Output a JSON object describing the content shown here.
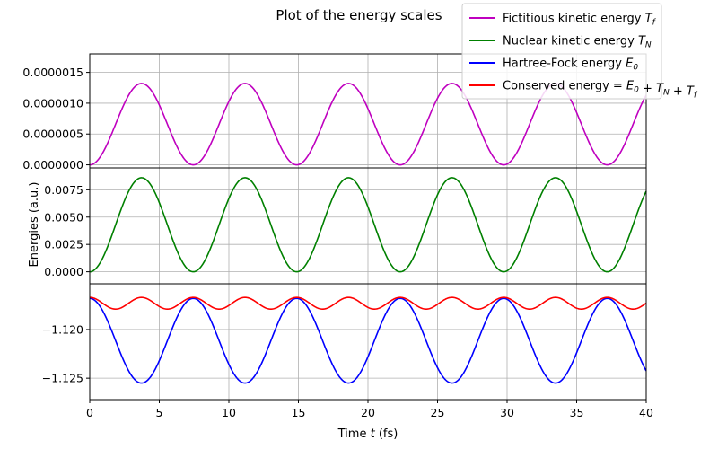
{
  "chart_data": {
    "type": "line",
    "title": "Plot of the energy scales",
    "xlabel": "Time t (fs)",
    "ylabel": "Energies (a.u.)",
    "xlim": [
      0,
      40
    ],
    "x_ticks": [
      0,
      5,
      10,
      15,
      20,
      25,
      30,
      35,
      40
    ],
    "x_tick_labels": [
      "0",
      "5",
      "10",
      "15",
      "20",
      "25",
      "30",
      "35",
      "40"
    ],
    "grid": true,
    "legend_position": "top-right",
    "panels": [
      {
        "ylim": [
          -5e-08,
          1.8e-06
        ],
        "y_ticks": [
          0,
          5e-07,
          1e-06,
          1.5e-06
        ],
        "y_tick_labels": [
          "0.0000000",
          "0.0000005",
          "0.0000010",
          "0.0000015"
        ],
        "series": [
          {
            "name": "Fictitious kinetic energy T_f",
            "color": "#bf00bf",
            "model": {
              "kind": "sq_sin",
              "amp": 1.32e-06,
              "period": 7.44,
              "phase": 0,
              "offset": 0.0
            }
          }
        ]
      },
      {
        "ylim": [
          -0.0011,
          0.0095
        ],
        "y_ticks": [
          0,
          0.0025,
          0.005,
          0.0075
        ],
        "y_tick_labels": [
          "0.0000",
          "0.0025",
          "0.0050",
          "0.0075"
        ],
        "series": [
          {
            "name": "Nuclear kinetic energy T_N",
            "color": "#008000",
            "model": {
              "kind": "sq_sin",
              "amp": 0.0086,
              "period": 7.44,
              "phase": 0,
              "offset": 0
            }
          }
        ]
      },
      {
        "ylim": [
          -1.1272,
          -1.1153
        ],
        "y_ticks": [
          -1.125,
          -1.12
        ],
        "y_tick_labels": [
          "−1.125",
          "−1.120"
        ],
        "series": [
          {
            "name": "Hartree-Fock energy E_0",
            "color": "#0000ff",
            "model": {
              "kind": "sq_sin",
              "amp": -0.0087,
              "period": 7.44,
              "phase": 0,
              "offset": -1.1168
            }
          },
          {
            "name": "Conserved energy = E_0 + T_N + T_f",
            "color": "#ff0000",
            "model": {
              "kind": "cos_wiggle",
              "amp": 0.0006,
              "period": 3.72,
              "offset": -1.1173
            }
          }
        ]
      }
    ],
    "legend": [
      {
        "label": "Fictitious kinetic energy",
        "math": "T",
        "sub": "f",
        "color": "#bf00bf"
      },
      {
        "label": "Nuclear kinetic energy",
        "math": "T",
        "sub": "N",
        "color": "#008000"
      },
      {
        "label": "Hartree-Fock energy",
        "math": "E",
        "sub": "0",
        "color": "#0000ff"
      },
      {
        "label": "Conserved energy = ",
        "math": "E0+TN+Tf",
        "sub": "",
        "color": "#ff0000"
      }
    ]
  }
}
